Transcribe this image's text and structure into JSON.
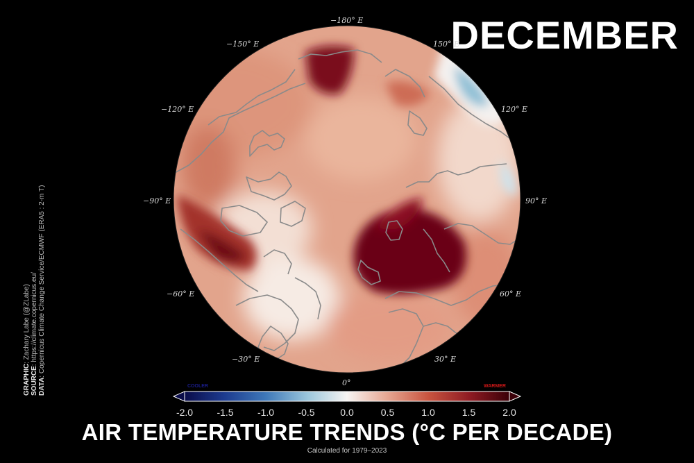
{
  "month_title": "DECEMBER",
  "map": {
    "projection": "north-polar-stereographic",
    "longitude_labels": [
      {
        "text": "−180° E",
        "lon": 180
      },
      {
        "text": "−150° E",
        "lon": -150
      },
      {
        "text": "150° E",
        "lon": 150
      },
      {
        "text": "−120° E",
        "lon": -120
      },
      {
        "text": "120° E",
        "lon": 120
      },
      {
        "text": "−90° E",
        "lon": -90
      },
      {
        "text": "90° E",
        "lon": 90
      },
      {
        "text": "−60° E",
        "lon": -60
      },
      {
        "text": "60° E",
        "lon": 60
      },
      {
        "text": "−30° E",
        "lon": -30
      },
      {
        "text": "30° E",
        "lon": 30
      },
      {
        "text": "0°",
        "lon": 0
      }
    ],
    "colors": {
      "strong_warming": "#5a0010",
      "warming": "#c45a45",
      "mild_warming": "#eab9a1",
      "neutral": "#f7f2ee",
      "cooling": "#8ec1d8",
      "coastline": "#8a8a8a"
    }
  },
  "colorbar": {
    "cold_label": "COOLER",
    "warm_label": "WARMER",
    "min": -2.0,
    "max": 2.0,
    "ticks": [
      "-2.0",
      "-1.5",
      "-1.0",
      "-0.5",
      "0.0",
      "0.5",
      "1.0",
      "1.5",
      "2.0"
    ],
    "cold_color": "#1a1d8c",
    "warm_color": "#d01818"
  },
  "credits": {
    "graphic_label": "GRAPHIC",
    "graphic_value": ": Zachary Labe (@ZLabe)",
    "source_label": "SOURCE",
    "source_value": ": https://climate.copernicus.eu/",
    "data_label": "DATA",
    "data_value": ": Copernicus Climate Change Service/ECMWF (ERA5 : 2-m T)"
  },
  "title": "AIR TEMPERATURE TRENDS (°C PER DECADE)",
  "subtitle": "Calculated for 1979–2023"
}
